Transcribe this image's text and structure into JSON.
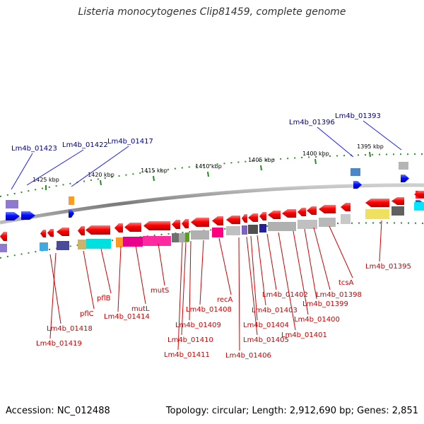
{
  "title": "Listeria monocytogenes Clip81459, complete genome",
  "footer": {
    "accession": "Accession: NC_012488",
    "topology": "Topology: circular; Length: 2,912,690 bp; Genes: 2,851"
  },
  "ruler_labels": [
    "1425 kbp",
    "1420 kbp",
    "1415 kbp",
    "1410 kbp",
    "1405 kbp",
    "1400 kbp",
    "1395 kbp"
  ],
  "labels_top": [
    "Lm4b_01423",
    "Lm4b_01422",
    "Lm4b_01417",
    "Lm4b_01396",
    "Lm4b_01393"
  ],
  "labels_bottom": [
    "Lm4b_01418",
    "Lm4b_01419",
    "pflC",
    "pflB",
    "Lm4b_01414",
    "mutL",
    "mutS",
    "Lm4b_01411",
    "Lm4b_01410",
    "Lm4b_01409",
    "Lm4b_01408",
    "recA",
    "Lm4b_01406",
    "Lm4b_01405",
    "Lm4b_01404",
    "Lm4b_01403",
    "Lm4b_01402",
    "Lm4b_01401",
    "Lm4b_01400",
    "Lm4b_01399",
    "Lm4b_01398",
    "tcsA",
    "Lm4b_01395"
  ],
  "colors": {
    "top_label": "#00008b",
    "bottom_label": "#cc0000",
    "gene_forward": "#0000ff",
    "gene_reverse": "#ff0000",
    "tick": "#228b22",
    "backbone": "#808080"
  }
}
